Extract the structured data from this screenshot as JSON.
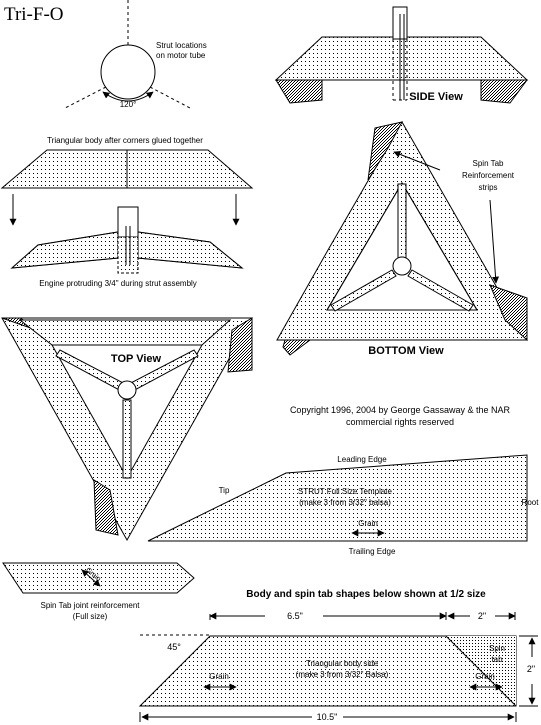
{
  "title": "Tri-F-O",
  "labels": {
    "strut_locations": [
      "Strut locations",
      "on motor tube"
    ],
    "angle": "120°",
    "side_view": "SIDE View",
    "triangular_body": "Triangular body after corners glued together",
    "engine": "Engine protruding 3/4\" during strut assembly",
    "spin_tab_reinf": [
      "Spin Tab",
      "Reinforcement",
      "strips"
    ],
    "top_view": "TOP View",
    "bottom_view": "BOTTOM View",
    "copyright": [
      "Copyright 1996, 2004 by George Gassaway & the NAR",
      "commercial rights reserved"
    ],
    "leading_edge": "Leading Edge",
    "tip": "Tip",
    "root": "Root",
    "strut_template": [
      "STRUT Full Size Template",
      "(make 3 from 3/32\" balsa)"
    ],
    "grain": "Grain",
    "trailing_edge": "Trailing Edge",
    "spin_tab_joint": [
      "Spin Tab joint reinforcement",
      "(Full size)"
    ],
    "grain_diag": "Grain",
    "half_size_note": "Body and spin tab shapes below shown at 1/2 size",
    "dim_6_5": "6.5\"",
    "dim_2": "2\"",
    "dim_45": "45°",
    "body_side": [
      "Triangular body side",
      "(make 3 from 3/32\" Balsa)"
    ],
    "grain_left": "Grain",
    "grain_right": "Grain",
    "spin_tab": [
      "Spin",
      "tab"
    ],
    "dim_2_vert": "2\"",
    "dim_10_5": "10.5\""
  }
}
